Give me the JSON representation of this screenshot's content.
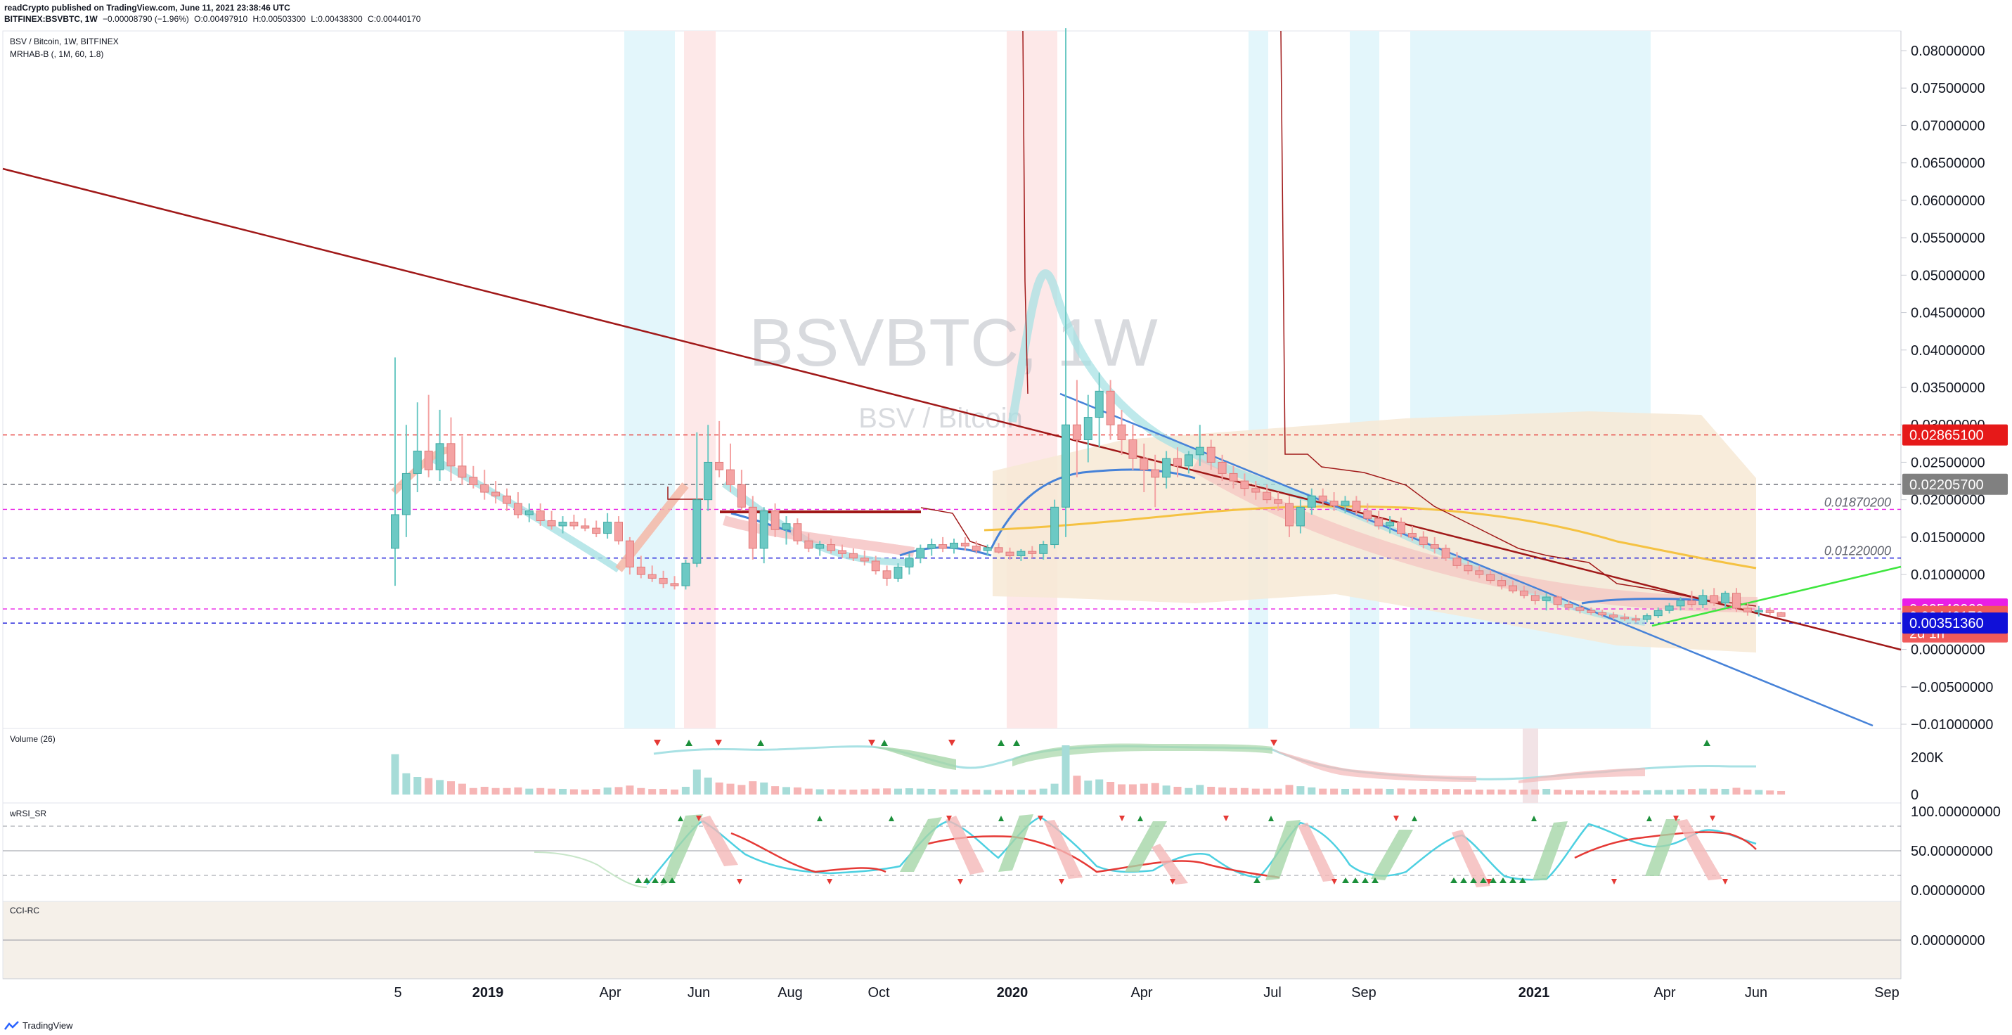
{
  "header": {
    "publisher": "readCrypto published on TradingView.com, June 11, 2021 23:38:46 UTC",
    "symbol_line": "BITFINEX:BSVBTC, 1W",
    "change": "−0.00008790 (−1.96%)",
    "open": "O:0.00497910",
    "high": "H:0.00503300",
    "low": "L:0.00438300",
    "close": "C:0.00440170"
  },
  "legend": {
    "main_title": "BSV / Bitcoin, 1W, BITFINEX",
    "indicator": "MRHAB-B (, 1M, 60, 1.8)",
    "volume": "Volume (26)",
    "rsi": "wRSI_SR",
    "cci": "CCI-RC"
  },
  "watermark": {
    "big": "BSVBTC, 1W",
    "small": "BSV / Bitcoin"
  },
  "branding": "TradingView",
  "colors": {
    "up": "#6cc9c4",
    "down": "#f4a3a3",
    "trend_dark": "#a01818",
    "trend_blue": "#4682d8",
    "trend_green": "#3ee63e",
    "ma_orange": "#f5c242",
    "price_red_tag": "#e61919",
    "price_grey_tag": "#808080",
    "price_magenta_tag": "#e91ee6",
    "price_salmon_tag": "#f05a5a",
    "price_blue_tag": "#1010d8"
  },
  "chart_data": {
    "type": "candlestick",
    "symbol": "BITFINEX:BSVBTC",
    "interval": "1W",
    "price_axis": {
      "ticks": [
        "0.08000000",
        "0.07500000",
        "0.07000000",
        "0.06500000",
        "0.06000000",
        "0.05500000",
        "0.05000000",
        "0.04500000",
        "0.04000000",
        "0.03500000",
        "0.03000000",
        "0.02500000",
        "0.02000000",
        "0.01500000",
        "0.01000000",
        "0.00500000",
        "0.00000000",
        "−0.00500000",
        "−0.01000000"
      ],
      "range": [
        -0.0105,
        0.082
      ]
    },
    "time_axis": {
      "labels": [
        {
          "text": "5",
          "bold": false
        },
        {
          "text": "2019",
          "bold": true
        },
        {
          "text": "Apr",
          "bold": false
        },
        {
          "text": "Jun",
          "bold": false
        },
        {
          "text": "Aug",
          "bold": false
        },
        {
          "text": "Oct",
          "bold": false
        },
        {
          "text": "2020",
          "bold": true
        },
        {
          "text": "Apr",
          "bold": false
        },
        {
          "text": "Jul",
          "bold": false
        },
        {
          "text": "Sep",
          "bold": false
        },
        {
          "text": "2021",
          "bold": true
        },
        {
          "text": "Apr",
          "bold": false
        },
        {
          "text": "Jun",
          "bold": false
        },
        {
          "text": "Sep",
          "bold": false
        }
      ]
    },
    "price_tags": [
      {
        "value": "0.02865100",
        "price": 0.028651,
        "color": "#e61919"
      },
      {
        "value": "0.02205700",
        "price": 0.022057,
        "color": "#808080"
      },
      {
        "value": "0.00540060",
        "price": 0.0054006,
        "color": "#e91ee6"
      },
      {
        "value": "0.00440170",
        "price": 0.0044017,
        "color": "#f05a5a",
        "sub": "2d 1h"
      },
      {
        "value": "0.00351360",
        "price": 0.0035136,
        "color": "#1010d8"
      }
    ],
    "levels": [
      {
        "label": "0.01870200",
        "price": 0.018702
      },
      {
        "label": "0.01220000",
        "price": 0.0122
      }
    ],
    "candles": [
      {
        "o": 0.0135,
        "h": 0.039,
        "l": 0.0085,
        "c": 0.018
      },
      {
        "o": 0.018,
        "h": 0.03,
        "l": 0.015,
        "c": 0.0235
      },
      {
        "o": 0.0235,
        "h": 0.033,
        "l": 0.021,
        "c": 0.0265
      },
      {
        "o": 0.0265,
        "h": 0.034,
        "l": 0.023,
        "c": 0.024
      },
      {
        "o": 0.024,
        "h": 0.032,
        "l": 0.0225,
        "c": 0.0275
      },
      {
        "o": 0.0275,
        "h": 0.031,
        "l": 0.0225,
        "c": 0.0245
      },
      {
        "o": 0.0245,
        "h": 0.0285,
        "l": 0.022,
        "c": 0.023
      },
      {
        "o": 0.023,
        "h": 0.0245,
        "l": 0.0215,
        "c": 0.022
      },
      {
        "o": 0.022,
        "h": 0.024,
        "l": 0.02,
        "c": 0.021
      },
      {
        "o": 0.021,
        "h": 0.0225,
        "l": 0.0195,
        "c": 0.0205
      },
      {
        "o": 0.0205,
        "h": 0.0215,
        "l": 0.0185,
        "c": 0.0195
      },
      {
        "o": 0.0195,
        "h": 0.021,
        "l": 0.0175,
        "c": 0.018
      },
      {
        "o": 0.018,
        "h": 0.0195,
        "l": 0.017,
        "c": 0.0185
      },
      {
        "o": 0.0185,
        "h": 0.0195,
        "l": 0.0165,
        "c": 0.0172
      },
      {
        "o": 0.0172,
        "h": 0.0185,
        "l": 0.016,
        "c": 0.0165
      },
      {
        "o": 0.0165,
        "h": 0.0178,
        "l": 0.0155,
        "c": 0.017
      },
      {
        "o": 0.017,
        "h": 0.018,
        "l": 0.016,
        "c": 0.0165
      },
      {
        "o": 0.0165,
        "h": 0.0175,
        "l": 0.0158,
        "c": 0.0162
      },
      {
        "o": 0.0162,
        "h": 0.0172,
        "l": 0.015,
        "c": 0.0155
      },
      {
        "o": 0.0155,
        "h": 0.0182,
        "l": 0.0148,
        "c": 0.017
      },
      {
        "o": 0.017,
        "h": 0.0178,
        "l": 0.014,
        "c": 0.0145
      },
      {
        "o": 0.0145,
        "h": 0.015,
        "l": 0.01,
        "c": 0.011
      },
      {
        "o": 0.011,
        "h": 0.0125,
        "l": 0.0095,
        "c": 0.01
      },
      {
        "o": 0.01,
        "h": 0.0112,
        "l": 0.009,
        "c": 0.0095
      },
      {
        "o": 0.0095,
        "h": 0.0105,
        "l": 0.0082,
        "c": 0.0088
      },
      {
        "o": 0.0088,
        "h": 0.0098,
        "l": 0.008,
        "c": 0.0085
      },
      {
        "o": 0.0085,
        "h": 0.012,
        "l": 0.008,
        "c": 0.0115
      },
      {
        "o": 0.0115,
        "h": 0.029,
        "l": 0.011,
        "c": 0.02
      },
      {
        "o": 0.02,
        "h": 0.03,
        "l": 0.0185,
        "c": 0.025
      },
      {
        "o": 0.025,
        "h": 0.0305,
        "l": 0.023,
        "c": 0.024
      },
      {
        "o": 0.024,
        "h": 0.0275,
        "l": 0.021,
        "c": 0.022
      },
      {
        "o": 0.022,
        "h": 0.024,
        "l": 0.0185,
        "c": 0.019
      },
      {
        "o": 0.019,
        "h": 0.0205,
        "l": 0.012,
        "c": 0.0135
      },
      {
        "o": 0.0135,
        "h": 0.019,
        "l": 0.0115,
        "c": 0.0185
      },
      {
        "o": 0.0185,
        "h": 0.0195,
        "l": 0.015,
        "c": 0.016
      },
      {
        "o": 0.016,
        "h": 0.0178,
        "l": 0.014,
        "c": 0.0168
      },
      {
        "o": 0.0168,
        "h": 0.0175,
        "l": 0.014,
        "c": 0.0145
      },
      {
        "o": 0.0145,
        "h": 0.0155,
        "l": 0.013,
        "c": 0.0135
      },
      {
        "o": 0.0135,
        "h": 0.0145,
        "l": 0.0125,
        "c": 0.014
      },
      {
        "o": 0.014,
        "h": 0.0148,
        "l": 0.0128,
        "c": 0.0132
      },
      {
        "o": 0.0132,
        "h": 0.014,
        "l": 0.0122,
        "c": 0.0128
      },
      {
        "o": 0.0128,
        "h": 0.0135,
        "l": 0.0118,
        "c": 0.0122
      },
      {
        "o": 0.0122,
        "h": 0.0132,
        "l": 0.0112,
        "c": 0.0118
      },
      {
        "o": 0.0118,
        "h": 0.0125,
        "l": 0.01,
        "c": 0.0105
      },
      {
        "o": 0.0105,
        "h": 0.0112,
        "l": 0.0085,
        "c": 0.0095
      },
      {
        "o": 0.0095,
        "h": 0.0115,
        "l": 0.009,
        "c": 0.011
      },
      {
        "o": 0.011,
        "h": 0.0128,
        "l": 0.01,
        "c": 0.0122
      },
      {
        "o": 0.0122,
        "h": 0.014,
        "l": 0.0115,
        "c": 0.0135
      },
      {
        "o": 0.0135,
        "h": 0.0148,
        "l": 0.0125,
        "c": 0.014
      },
      {
        "o": 0.014,
        "h": 0.015,
        "l": 0.013,
        "c": 0.0135
      },
      {
        "o": 0.0135,
        "h": 0.0148,
        "l": 0.0128,
        "c": 0.0142
      },
      {
        "o": 0.0142,
        "h": 0.015,
        "l": 0.0132,
        "c": 0.0138
      },
      {
        "o": 0.0138,
        "h": 0.0145,
        "l": 0.0128,
        "c": 0.0132
      },
      {
        "o": 0.0132,
        "h": 0.014,
        "l": 0.0125,
        "c": 0.0136
      },
      {
        "o": 0.0136,
        "h": 0.0142,
        "l": 0.0128,
        "c": 0.013
      },
      {
        "o": 0.013,
        "h": 0.0136,
        "l": 0.012,
        "c": 0.0125
      },
      {
        "o": 0.0125,
        "h": 0.0134,
        "l": 0.0118,
        "c": 0.0131
      },
      {
        "o": 0.0131,
        "h": 0.0138,
        "l": 0.0122,
        "c": 0.0128
      },
      {
        "o": 0.0128,
        "h": 0.0145,
        "l": 0.012,
        "c": 0.014
      },
      {
        "o": 0.014,
        "h": 0.02,
        "l": 0.0135,
        "c": 0.019
      },
      {
        "o": 0.019,
        "h": 0.083,
        "l": 0.015,
        "c": 0.03
      },
      {
        "o": 0.03,
        "h": 0.036,
        "l": 0.023,
        "c": 0.028
      },
      {
        "o": 0.028,
        "h": 0.034,
        "l": 0.025,
        "c": 0.031
      },
      {
        "o": 0.031,
        "h": 0.037,
        "l": 0.027,
        "c": 0.0345
      },
      {
        "o": 0.0345,
        "h": 0.036,
        "l": 0.028,
        "c": 0.03
      },
      {
        "o": 0.03,
        "h": 0.032,
        "l": 0.026,
        "c": 0.028
      },
      {
        "o": 0.028,
        "h": 0.03,
        "l": 0.024,
        "c": 0.0255
      },
      {
        "o": 0.0255,
        "h": 0.0275,
        "l": 0.021,
        "c": 0.024
      },
      {
        "o": 0.024,
        "h": 0.026,
        "l": 0.019,
        "c": 0.023
      },
      {
        "o": 0.023,
        "h": 0.0265,
        "l": 0.0215,
        "c": 0.0255
      },
      {
        "o": 0.0255,
        "h": 0.027,
        "l": 0.023,
        "c": 0.0245
      },
      {
        "o": 0.0245,
        "h": 0.0265,
        "l": 0.0235,
        "c": 0.026
      },
      {
        "o": 0.026,
        "h": 0.03,
        "l": 0.0245,
        "c": 0.027
      },
      {
        "o": 0.027,
        "h": 0.028,
        "l": 0.024,
        "c": 0.025
      },
      {
        "o": 0.025,
        "h": 0.026,
        "l": 0.0225,
        "c": 0.0235
      },
      {
        "o": 0.0235,
        "h": 0.0245,
        "l": 0.0215,
        "c": 0.0225
      },
      {
        "o": 0.0225,
        "h": 0.0235,
        "l": 0.0205,
        "c": 0.0215
      },
      {
        "o": 0.0215,
        "h": 0.0225,
        "l": 0.02,
        "c": 0.021
      },
      {
        "o": 0.021,
        "h": 0.022,
        "l": 0.0195,
        "c": 0.02
      },
      {
        "o": 0.02,
        "h": 0.021,
        "l": 0.0185,
        "c": 0.0195
      },
      {
        "o": 0.0195,
        "h": 0.0205,
        "l": 0.015,
        "c": 0.0165
      },
      {
        "o": 0.0165,
        "h": 0.02,
        "l": 0.0155,
        "c": 0.019
      },
      {
        "o": 0.019,
        "h": 0.0215,
        "l": 0.018,
        "c": 0.0205
      },
      {
        "o": 0.0205,
        "h": 0.0215,
        "l": 0.019,
        "c": 0.0198
      },
      {
        "o": 0.0198,
        "h": 0.021,
        "l": 0.0185,
        "c": 0.0192
      },
      {
        "o": 0.0192,
        "h": 0.0205,
        "l": 0.0182,
        "c": 0.0198
      },
      {
        "o": 0.0198,
        "h": 0.0205,
        "l": 0.018,
        "c": 0.0185
      },
      {
        "o": 0.0185,
        "h": 0.0195,
        "l": 0.017,
        "c": 0.0175
      },
      {
        "o": 0.0175,
        "h": 0.0185,
        "l": 0.016,
        "c": 0.0165
      },
      {
        "o": 0.0165,
        "h": 0.0178,
        "l": 0.0155,
        "c": 0.017
      },
      {
        "o": 0.017,
        "h": 0.0176,
        "l": 0.015,
        "c": 0.0155
      },
      {
        "o": 0.0155,
        "h": 0.0165,
        "l": 0.0145,
        "c": 0.015
      },
      {
        "o": 0.015,
        "h": 0.0158,
        "l": 0.0135,
        "c": 0.014
      },
      {
        "o": 0.014,
        "h": 0.015,
        "l": 0.0128,
        "c": 0.0135
      },
      {
        "o": 0.0135,
        "h": 0.014,
        "l": 0.0118,
        "c": 0.0122
      },
      {
        "o": 0.0122,
        "h": 0.013,
        "l": 0.0108,
        "c": 0.0112
      },
      {
        "o": 0.0112,
        "h": 0.0118,
        "l": 0.01,
        "c": 0.0105
      },
      {
        "o": 0.0105,
        "h": 0.0112,
        "l": 0.0095,
        "c": 0.01
      },
      {
        "o": 0.01,
        "h": 0.0106,
        "l": 0.0088,
        "c": 0.0092
      },
      {
        "o": 0.0092,
        "h": 0.0098,
        "l": 0.008,
        "c": 0.0085
      },
      {
        "o": 0.0085,
        "h": 0.0092,
        "l": 0.0075,
        "c": 0.0078
      },
      {
        "o": 0.0078,
        "h": 0.0085,
        "l": 0.0068,
        "c": 0.0072
      },
      {
        "o": 0.0072,
        "h": 0.0078,
        "l": 0.006,
        "c": 0.0065
      },
      {
        "o": 0.0065,
        "h": 0.0075,
        "l": 0.0052,
        "c": 0.007
      },
      {
        "o": 0.007,
        "h": 0.0072,
        "l": 0.0055,
        "c": 0.006
      },
      {
        "o": 0.006,
        "h": 0.0065,
        "l": 0.0052,
        "c": 0.0056
      },
      {
        "o": 0.0056,
        "h": 0.006,
        "l": 0.0048,
        "c": 0.0052
      },
      {
        "o": 0.0052,
        "h": 0.0056,
        "l": 0.0046,
        "c": 0.0049
      },
      {
        "o": 0.0049,
        "h": 0.0053,
        "l": 0.0043,
        "c": 0.0046
      },
      {
        "o": 0.0046,
        "h": 0.005,
        "l": 0.004,
        "c": 0.0043
      },
      {
        "o": 0.0043,
        "h": 0.0048,
        "l": 0.0038,
        "c": 0.0041
      },
      {
        "o": 0.0041,
        "h": 0.0046,
        "l": 0.0036,
        "c": 0.004
      },
      {
        "o": 0.004,
        "h": 0.0048,
        "l": 0.0036,
        "c": 0.0045
      },
      {
        "o": 0.0045,
        "h": 0.0056,
        "l": 0.0042,
        "c": 0.0052
      },
      {
        "o": 0.0052,
        "h": 0.0062,
        "l": 0.0048,
        "c": 0.0058
      },
      {
        "o": 0.0058,
        "h": 0.007,
        "l": 0.0052,
        "c": 0.0065
      },
      {
        "o": 0.0065,
        "h": 0.0078,
        "l": 0.0056,
        "c": 0.006
      },
      {
        "o": 0.006,
        "h": 0.008,
        "l": 0.0055,
        "c": 0.0072
      },
      {
        "o": 0.0072,
        "h": 0.0082,
        "l": 0.0058,
        "c": 0.0062
      },
      {
        "o": 0.0062,
        "h": 0.0078,
        "l": 0.0055,
        "c": 0.0075
      },
      {
        "o": 0.0075,
        "h": 0.0082,
        "l": 0.005,
        "c": 0.0055
      },
      {
        "o": 0.0055,
        "h": 0.0062,
        "l": 0.0045,
        "c": 0.005
      },
      {
        "o": 0.005,
        "h": 0.0058,
        "l": 0.0044,
        "c": 0.0052
      },
      {
        "o": 0.0052,
        "h": 0.0056,
        "l": 0.0046,
        "c": 0.0049
      },
      {
        "o": 0.0049,
        "h": 0.005,
        "l": 0.0044,
        "c": 0.0044
      }
    ],
    "volume_axis": {
      "ticks": [
        "200K",
        "0"
      ]
    },
    "rsi_axis": {
      "ticks": [
        "100.00000000",
        "50.00000000",
        "0.00000000"
      ]
    },
    "cci_axis": {
      "ticks": [
        "0.00000000"
      ]
    }
  }
}
